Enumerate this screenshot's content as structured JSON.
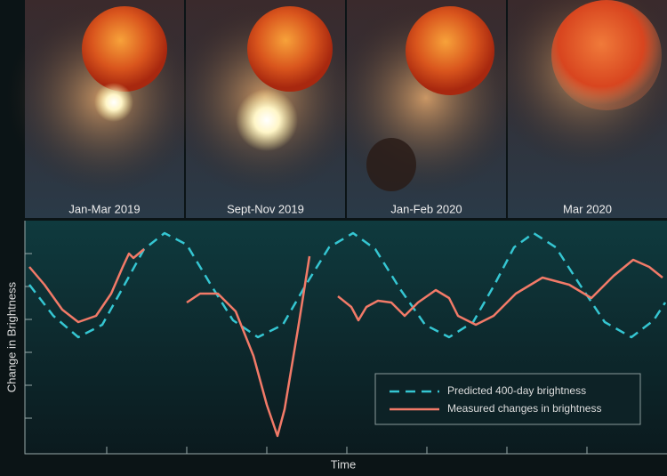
{
  "panels": [
    "Jan-Mar 2019",
    "Sept-Nov  2019",
    "Jan-Feb 2020",
    "Mar 2020"
  ],
  "chart_data": {
    "type": "line",
    "x_label": "Time",
    "y_label": "Change in Brightness",
    "xlim": [
      0,
      722
    ],
    "ylim": [
      0,
      262
    ],
    "legend": "bottom-right",
    "series": [
      {
        "name": "Predicted 400-day brightness",
        "color": "#35c6d2",
        "dash": true,
        "x": [
          5,
          32,
          60,
          87,
          112,
          134,
          157,
          182,
          209,
          234,
          262,
          290,
          316,
          342,
          369,
          394,
          422,
          450,
          477,
          504,
          528,
          550,
          572,
          597,
          624,
          652,
          682,
          707,
          720
        ],
        "values": [
          190,
          155,
          131,
          145,
          190,
          230,
          248,
          235,
          190,
          150,
          131,
          145,
          190,
          232,
          248,
          230,
          185,
          145,
          131,
          148,
          190,
          232,
          248,
          232,
          190,
          148,
          131,
          150,
          170
        ]
      },
      {
        "name": "Measured changes in brightness",
        "color": "#f27a68",
        "dash": false,
        "x": [
          5,
          22,
          42,
          60,
          80,
          97,
          110,
          117,
          122,
          134,
          null,
          182,
          197,
          217,
          237,
          257,
          272,
          284,
          292,
          307,
          320,
          null,
          352,
          367,
          375,
          384,
          397,
          412,
          427,
          442,
          462,
          477,
          487,
          507,
          527,
          552,
          582,
          612,
          637,
          662,
          684,
          702,
          717
        ],
        "values": [
          210,
          190,
          162,
          148,
          155,
          180,
          210,
          225,
          220,
          230,
          null,
          170,
          180,
          180,
          160,
          110,
          55,
          20,
          50,
          140,
          222,
          null,
          177,
          165,
          150,
          165,
          172,
          170,
          155,
          170,
          184,
          175,
          155,
          145,
          155,
          180,
          198,
          190,
          175,
          200,
          218,
          210,
          198
        ]
      }
    ]
  }
}
